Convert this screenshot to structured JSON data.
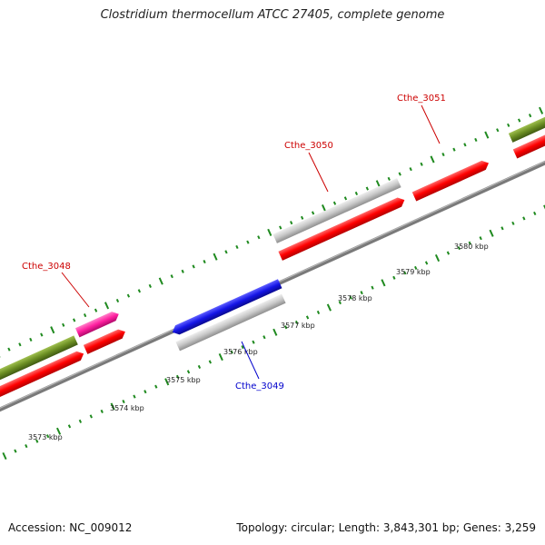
{
  "title": "Clostridium thermocellum ATCC 27405, complete genome",
  "footer": {
    "accession": "Accession: NC_009012",
    "summary": "Topology: circular; Length: 3,843,301 bp; Genes: 3,259"
  },
  "colors": {
    "backbone": "#888888",
    "tick": "#1f8a1f",
    "gene_red": "#ff0000",
    "gene_gray": "#c8c8c8",
    "gene_blue": "#1414e6",
    "gene_pink": "#ff1fa0",
    "gene_olive": "#6b8e23",
    "label_red": "#cc0000",
    "label_blue": "#0000cc"
  },
  "scale_labels": [
    {
      "text": "3573 kbp",
      "kbp": 3573
    },
    {
      "text": "3574 kbp",
      "kbp": 3574
    },
    {
      "text": "3575 kbp",
      "kbp": 3575
    },
    {
      "text": "3576 kbp",
      "kbp": 3576
    },
    {
      "text": "3577 kbp",
      "kbp": 3577
    },
    {
      "text": "3578 kbp",
      "kbp": 3578
    },
    {
      "text": "3579 kbp",
      "kbp": 3579
    },
    {
      "text": "3580 kbp",
      "kbp": 3580
    }
  ],
  "gene_labels": [
    {
      "name": "Cthe_3048",
      "color": "label_red"
    },
    {
      "name": "Cthe_3049",
      "color": "label_blue"
    },
    {
      "name": "Cthe_3050",
      "color": "label_red"
    },
    {
      "name": "Cthe_3051",
      "color": "label_red"
    }
  ]
}
